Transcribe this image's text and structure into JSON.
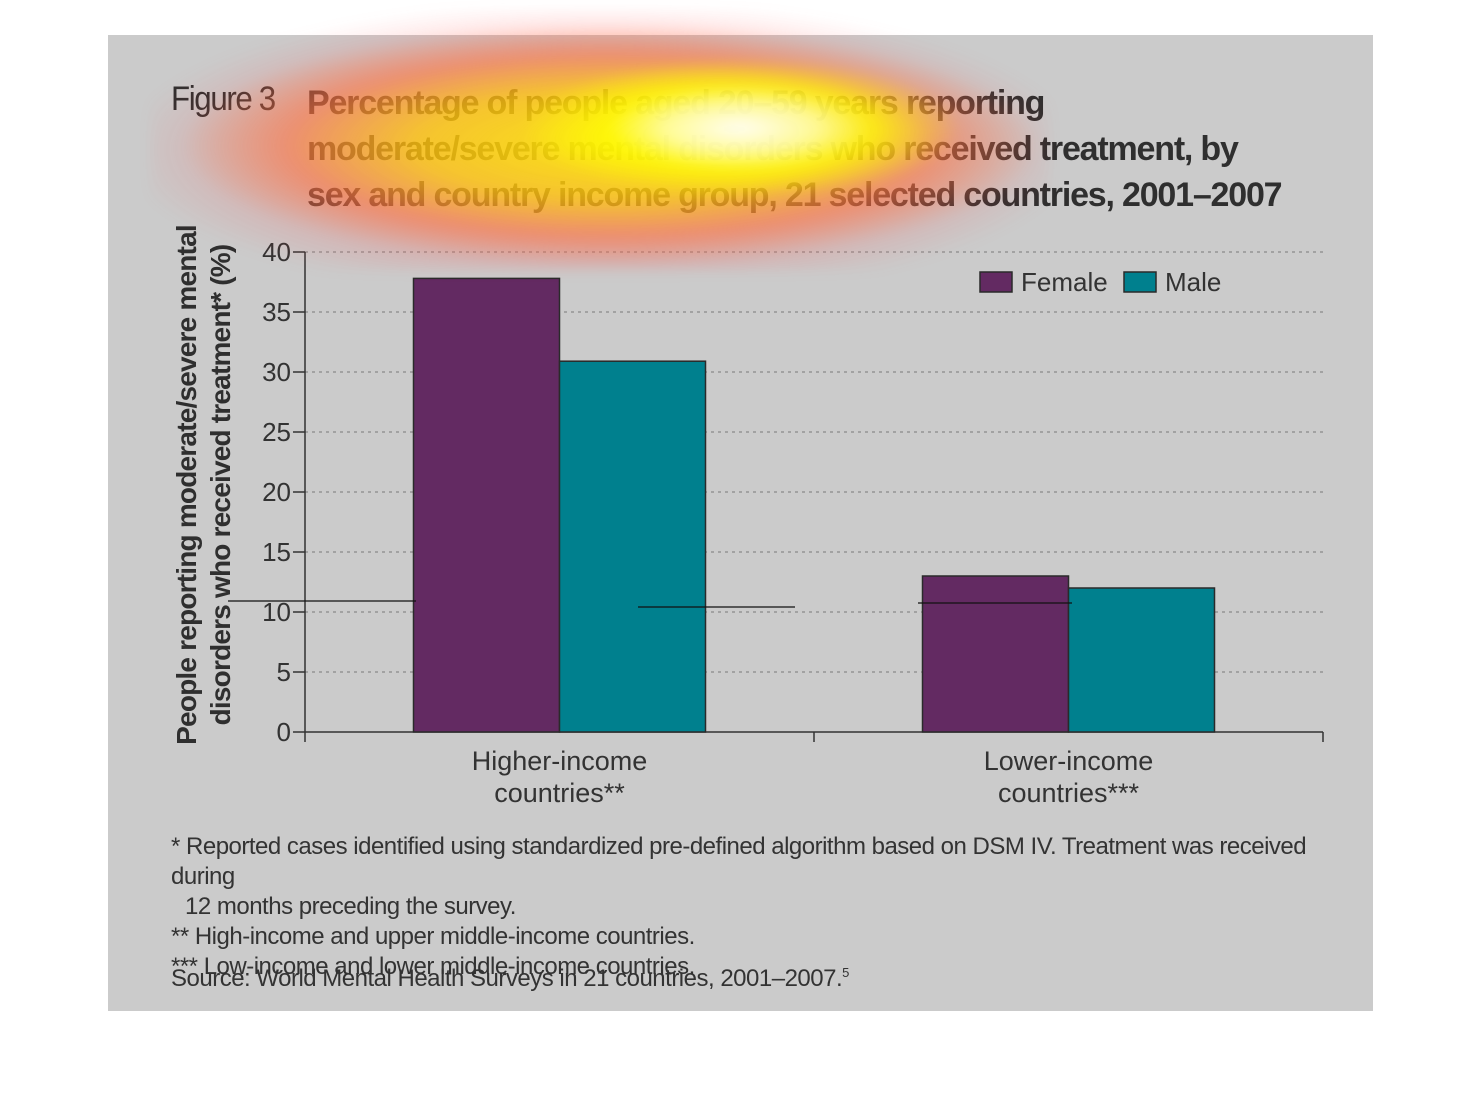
{
  "figure": {
    "label": "Figure 3",
    "title_lines": [
      "Percentage of people aged 20–59 years reporting",
      "moderate/severe mental disorders who received treatment, by",
      "sex and country income group, 21 selected countries, 2001–2007"
    ]
  },
  "chart_data": {
    "type": "bar",
    "title": "Percentage of people aged 20–59 years reporting moderate/severe mental disorders who received treatment, by sex and country income group, 21 selected countries, 2001–2007",
    "categories": [
      [
        "Higher-income",
        "countries**"
      ],
      [
        "Lower-income",
        "countries***"
      ]
    ],
    "series": [
      {
        "name": "Female",
        "values": [
          37.8,
          13.0
        ],
        "color": "#632a62"
      },
      {
        "name": "Male",
        "values": [
          30.9,
          12.0
        ],
        "color": "#00808e"
      }
    ],
    "ylabel_lines": [
      "People reporting moderate/severe mental",
      "disorders who received treatment* (%)"
    ],
    "ylim": [
      0,
      40
    ],
    "yticks": [
      "0",
      "5",
      "10",
      "15",
      "20",
      "25",
      "30",
      "35",
      "40"
    ],
    "grid": true,
    "legend": "top-right"
  },
  "notes": {
    "note1_line1": "* Reported cases identified using standardized pre-defined algorithm based on DSM IV. Treatment was received during",
    "note1_line2": "12 months preceding the survey.",
    "note2": "** High-income and upper middle-income countries.",
    "note3": "*** Low-income and lower middle-income countries.",
    "source": "Source: World Mental Health Surveys in 21 countries, 2001–2007.",
    "source_ref": "5"
  },
  "colors": {
    "panel_bg": "#cbcbcb",
    "female": "#632a62",
    "male": "#00808e"
  }
}
